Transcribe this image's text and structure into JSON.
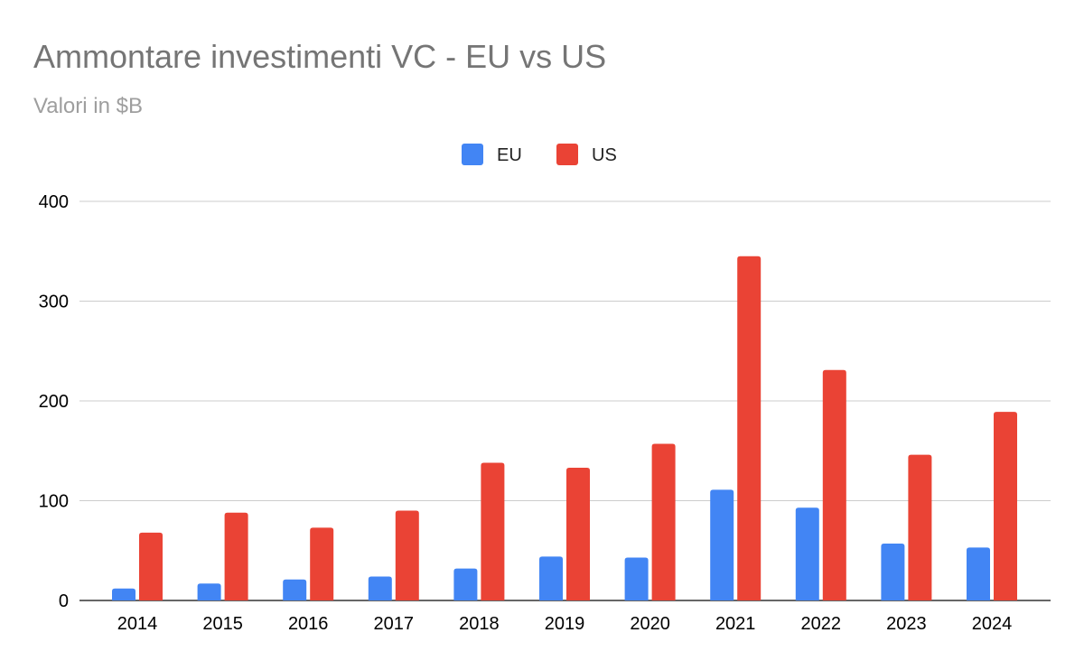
{
  "chart_data": {
    "type": "bar",
    "title": "Ammontare investimenti VC - EU vs US",
    "subtitle": "Valori in $B",
    "xlabel": "",
    "ylabel": "",
    "ylim": [
      0,
      400
    ],
    "yticks": [
      "0",
      "100",
      "200",
      "300",
      "400"
    ],
    "grid": true,
    "legend_position": "top-center",
    "categories": [
      "2014",
      "2015",
      "2016",
      "2017",
      "2018",
      "2019",
      "2020",
      "2021",
      "2022",
      "2023",
      "2024"
    ],
    "series": [
      {
        "name": "EU",
        "color": "#4285f4",
        "values": [
          12,
          17,
          21,
          24,
          32,
          44,
          43,
          111,
          93,
          57,
          53
        ]
      },
      {
        "name": "US",
        "color": "#ea4335",
        "values": [
          68,
          88,
          73,
          90,
          138,
          133,
          157,
          345,
          231,
          146,
          189
        ]
      }
    ]
  }
}
